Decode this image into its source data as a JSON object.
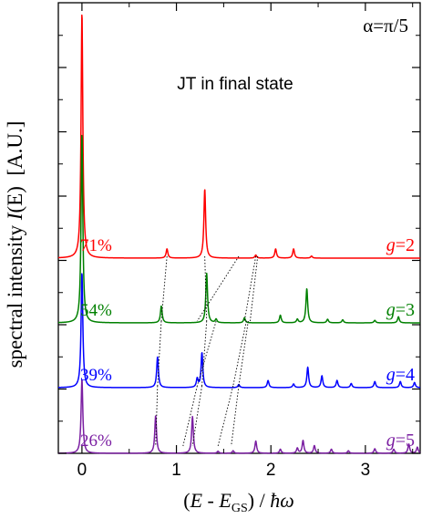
{
  "chart_data": {
    "type": "line",
    "title": "JT in final state",
    "corner_label": "α=π/5",
    "xlabel": "(E - E_GS) / ħω",
    "ylabel": "spectral intensity I(E) [A.U.]",
    "ylabel_parts": {
      "pre": "spectral intensity ",
      "sym": "I",
      "arg": "(E)",
      "unit": "  [A.U.]"
    },
    "xlabel_parts": {
      "open": "(",
      "e1": "E",
      "minus": " - ",
      "e2": "E",
      "sub": "GS",
      "close": ")",
      "slash": " / ",
      "hbar": "ħω"
    },
    "xlim": [
      -0.25,
      3.58
    ],
    "xticks": [
      0,
      1,
      2,
      3
    ],
    "xtick_labels": [
      "0",
      "1",
      "2",
      "3"
    ],
    "grid": false,
    "series": [
      {
        "name": "g=2",
        "g_label": "g",
        "g_value": "=2",
        "percent": "71%",
        "color": "#ff0000",
        "peaks": [
          [
            0.0,
            4.8
          ],
          [
            0.9,
            0.18
          ],
          [
            1.3,
            1.35
          ],
          [
            1.84,
            0.06
          ],
          [
            2.05,
            0.18
          ],
          [
            2.24,
            0.18
          ],
          [
            2.43,
            0.04
          ]
        ]
      },
      {
        "name": "g=3",
        "g_label": "g",
        "g_value": "=3",
        "percent": "54%",
        "color": "#008000",
        "peaks": [
          [
            0.0,
            3.7
          ],
          [
            0.84,
            0.33
          ],
          [
            1.32,
            0.97
          ],
          [
            1.42,
            0.07
          ],
          [
            1.72,
            0.1
          ],
          [
            2.1,
            0.15
          ],
          [
            2.28,
            0.07
          ],
          [
            2.38,
            0.67
          ],
          [
            2.6,
            0.07
          ],
          [
            2.76,
            0.06
          ],
          [
            3.1,
            0.05
          ],
          [
            3.35,
            0.12
          ]
        ]
      },
      {
        "name": "g=4",
        "g_label": "g",
        "g_value": "=4",
        "percent": "39%",
        "color": "#0000ff",
        "peaks": [
          [
            0.0,
            2.25
          ],
          [
            0.8,
            0.6
          ],
          [
            1.22,
            0.17
          ],
          [
            1.27,
            0.68
          ],
          [
            1.66,
            0.06
          ],
          [
            1.97,
            0.14
          ],
          [
            2.24,
            0.07
          ],
          [
            2.39,
            0.4
          ],
          [
            2.54,
            0.23
          ],
          [
            2.7,
            0.14
          ],
          [
            2.85,
            0.08
          ],
          [
            3.1,
            0.12
          ],
          [
            3.37,
            0.12
          ],
          [
            3.52,
            0.1
          ]
        ]
      },
      {
        "name": "g=5",
        "g_label": "g",
        "g_value": "=5",
        "percent": "26%",
        "color": "#7b1fa2",
        "peaks": [
          [
            0.0,
            1.45
          ],
          [
            0.78,
            0.74
          ],
          [
            1.17,
            0.72
          ],
          [
            1.44,
            0.04
          ],
          [
            1.6,
            0.05
          ],
          [
            1.84,
            0.24
          ],
          [
            2.1,
            0.08
          ],
          [
            2.28,
            0.1
          ],
          [
            2.34,
            0.25
          ],
          [
            2.46,
            0.15
          ],
          [
            2.64,
            0.08
          ],
          [
            2.82,
            0.05
          ],
          [
            3.1,
            0.09
          ],
          [
            3.3,
            0.08
          ],
          [
            3.46,
            0.18
          ],
          [
            3.55,
            0.12
          ]
        ]
      }
    ],
    "connectors": [
      {
        "from": [
          0.9,
          0
        ],
        "to": [
          0.84,
          1
        ]
      },
      {
        "from": [
          0.84,
          1
        ],
        "to": [
          0.8,
          2
        ]
      },
      {
        "from": [
          0.8,
          2
        ],
        "to": [
          0.78,
          3
        ]
      },
      {
        "from": [
          1.3,
          0
        ],
        "to": [
          1.32,
          1
        ]
      },
      {
        "from": [
          1.32,
          1
        ],
        "to": [
          1.27,
          2
        ]
      },
      {
        "from": [
          1.27,
          2
        ],
        "to": [
          1.17,
          3
        ]
      },
      {
        "from": [
          1.66,
          0
        ],
        "to": [
          1.22,
          1
        ]
      },
      {
        "from": [
          1.42,
          1
        ],
        "to": [
          1.22,
          2
        ]
      },
      {
        "from": [
          1.22,
          2
        ],
        "to": [
          1.07,
          3
        ]
      },
      {
        "from": [
          1.84,
          0
        ],
        "to": [
          1.72,
          1
        ]
      },
      {
        "from": [
          1.74,
          1
        ],
        "to": [
          1.6,
          2
        ]
      },
      {
        "from": [
          1.6,
          2
        ],
        "to": [
          1.44,
          3
        ]
      },
      {
        "from": [
          1.86,
          0
        ],
        "to": [
          1.78,
          1
        ]
      },
      {
        "from": [
          1.76,
          1
        ],
        "to": [
          1.66,
          2
        ]
      },
      {
        "from": [
          1.66,
          2
        ],
        "to": [
          1.58,
          3
        ]
      }
    ]
  }
}
